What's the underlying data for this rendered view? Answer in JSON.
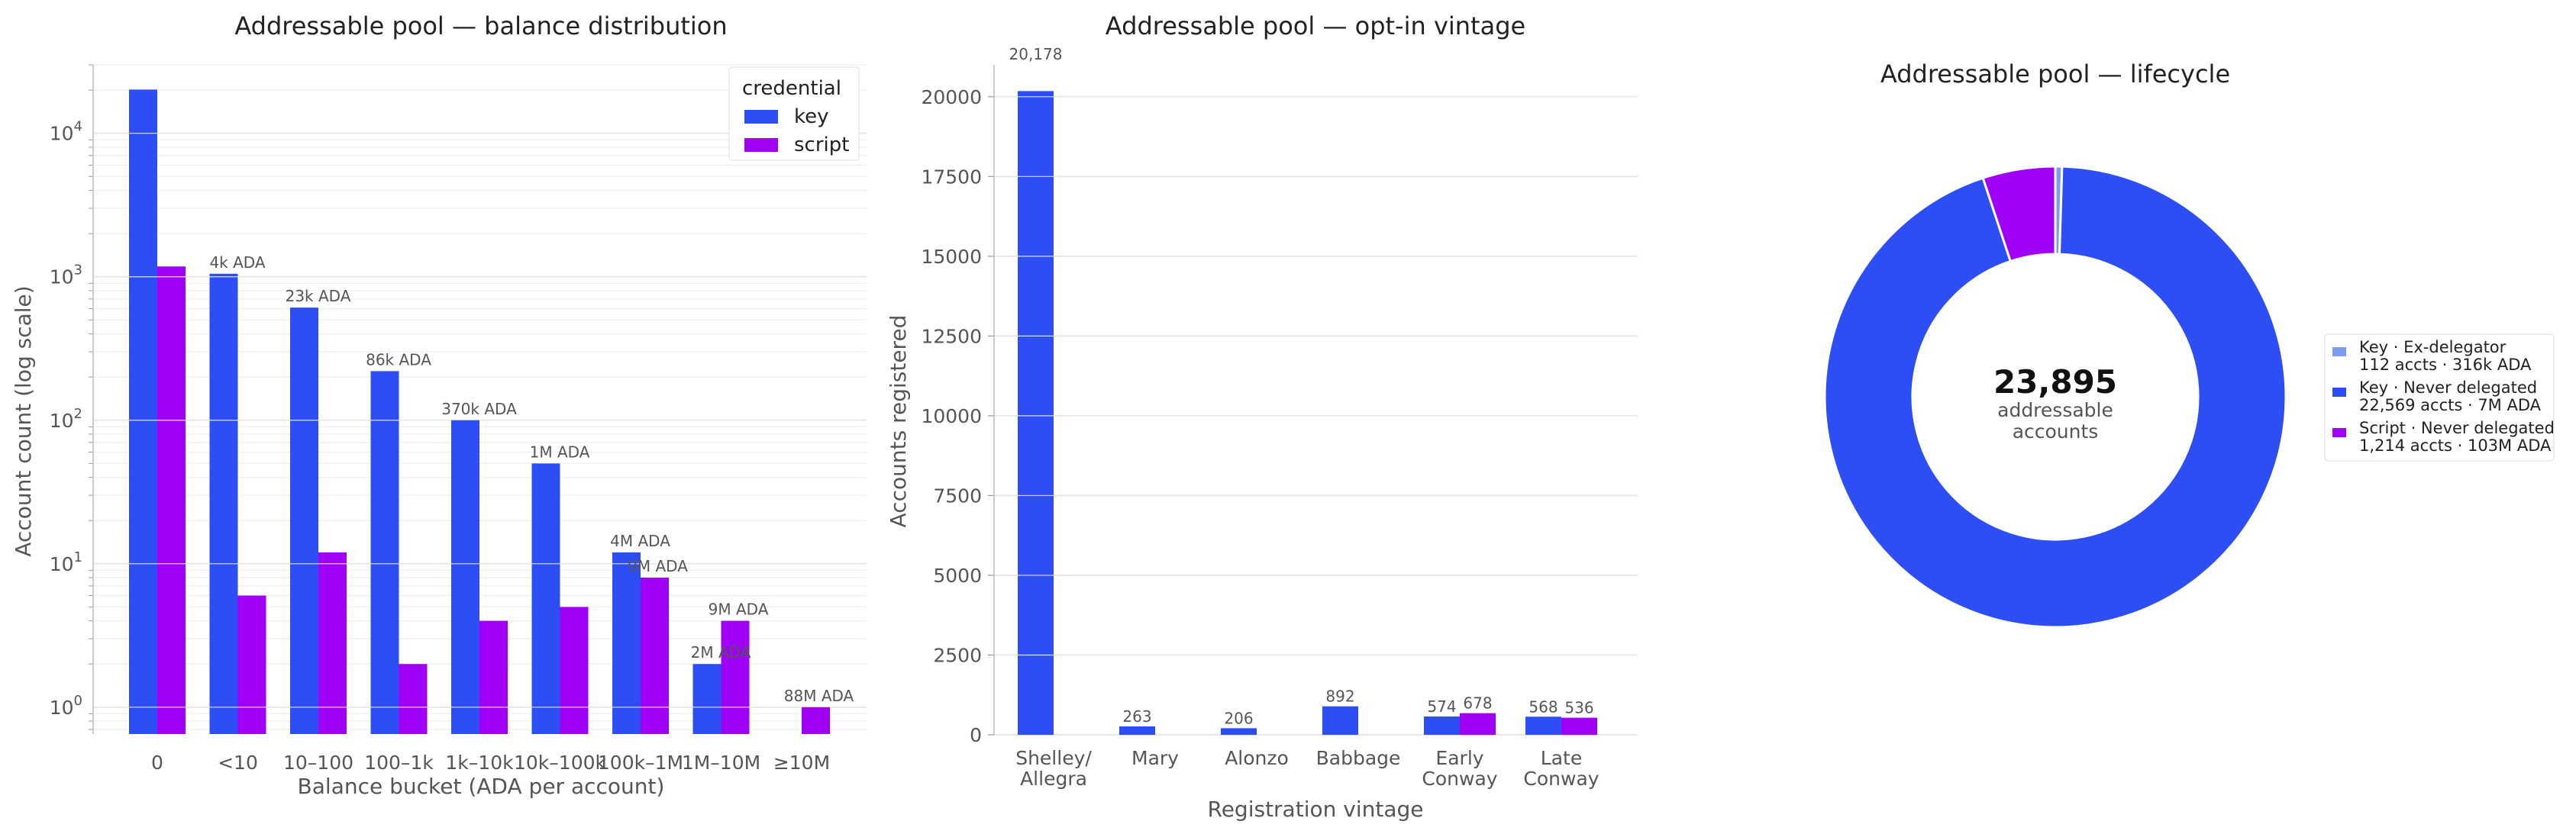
{
  "colors": {
    "key": "#2d4ef5",
    "script": "#a100f7",
    "key_ex": "#7b9df0",
    "grid": "#e8e8e8",
    "text": "#555555"
  },
  "chart_data": [
    {
      "type": "bar",
      "title": "Addressable pool — balance distribution",
      "xlabel": "Balance bucket (ADA per account)",
      "ylabel": "Account count (log scale)",
      "yscale": "log",
      "ylim": [
        0.65,
        30000
      ],
      "yticks": [
        {
          "v": 1,
          "e": "0"
        },
        {
          "v": 10,
          "e": "1"
        },
        {
          "v": 100,
          "e": "2"
        },
        {
          "v": 1000,
          "e": "3"
        },
        {
          "v": 10000,
          "e": "4"
        }
      ],
      "ytick_base": "10",
      "grid": true,
      "legend": {
        "title": "credential",
        "placement": "top-right"
      },
      "categories": [
        "0",
        "<10",
        "10–100",
        "100–1k",
        "1k–10k",
        "10k–100k",
        "100k–1M",
        "1M–10M",
        "≥10M"
      ],
      "series": [
        {
          "name": "key",
          "values": [
            20178,
            1050,
            610,
            220,
            100,
            50,
            12,
            2,
            null
          ]
        },
        {
          "name": "script",
          "values": [
            1180,
            6,
            12,
            2,
            4,
            5,
            8,
            4,
            1
          ]
        }
      ],
      "annotations": [
        "",
        "4k ADA",
        "23k ADA",
        "86k ADA",
        "370k ADA",
        "1M ADA",
        "4M ADA",
        "2M ADA",
        ""
      ],
      "annotations_script": [
        "",
        "",
        "",
        "",
        "",
        "",
        "9M ADA",
        "9M ADA",
        "88M ADA"
      ]
    },
    {
      "type": "bar",
      "title": "Addressable pool — opt-in vintage",
      "xlabel": "Registration vintage",
      "ylabel": "Accounts registered",
      "ylim": [
        0,
        21000
      ],
      "yticks": [
        "0",
        "2500",
        "5000",
        "7500",
        "10000",
        "12500",
        "15000",
        "17500",
        "20000"
      ],
      "grid": true,
      "categories": [
        [
          "Shelley/",
          "Allegra"
        ],
        [
          "Mary"
        ],
        [
          "Alonzo"
        ],
        [
          "Babbage"
        ],
        [
          "Early",
          "Conway"
        ],
        [
          "Late",
          "Conway"
        ]
      ],
      "series": [
        {
          "name": "key",
          "values": [
            20178,
            263,
            206,
            892,
            574,
            568
          ]
        },
        {
          "name": "script",
          "values": [
            0,
            0,
            0,
            0,
            678,
            536
          ]
        }
      ],
      "labels_key": [
        "20,178",
        "263",
        "206",
        "892",
        "574",
        "568"
      ],
      "labels_script": [
        "",
        "",
        "",
        "",
        "678",
        "536"
      ]
    },
    {
      "type": "pie",
      "title": "Addressable pool — lifecycle",
      "center_value": "23,895",
      "center_label": [
        "addressable",
        "accounts"
      ],
      "legend": {
        "placement": "right"
      },
      "slices": [
        {
          "label": "Key · Ex-delegator",
          "detail": "112 accts · 316k ADA",
          "value": 112,
          "color_key": "key_ex"
        },
        {
          "label": "Key · Never delegated",
          "detail": "22,569 accts · 7M ADA",
          "value": 22569,
          "color_key": "key"
        },
        {
          "label": "Script · Never delegated",
          "detail": "1,214 accts · 103M ADA",
          "value": 1214,
          "color_key": "script"
        }
      ]
    }
  ]
}
